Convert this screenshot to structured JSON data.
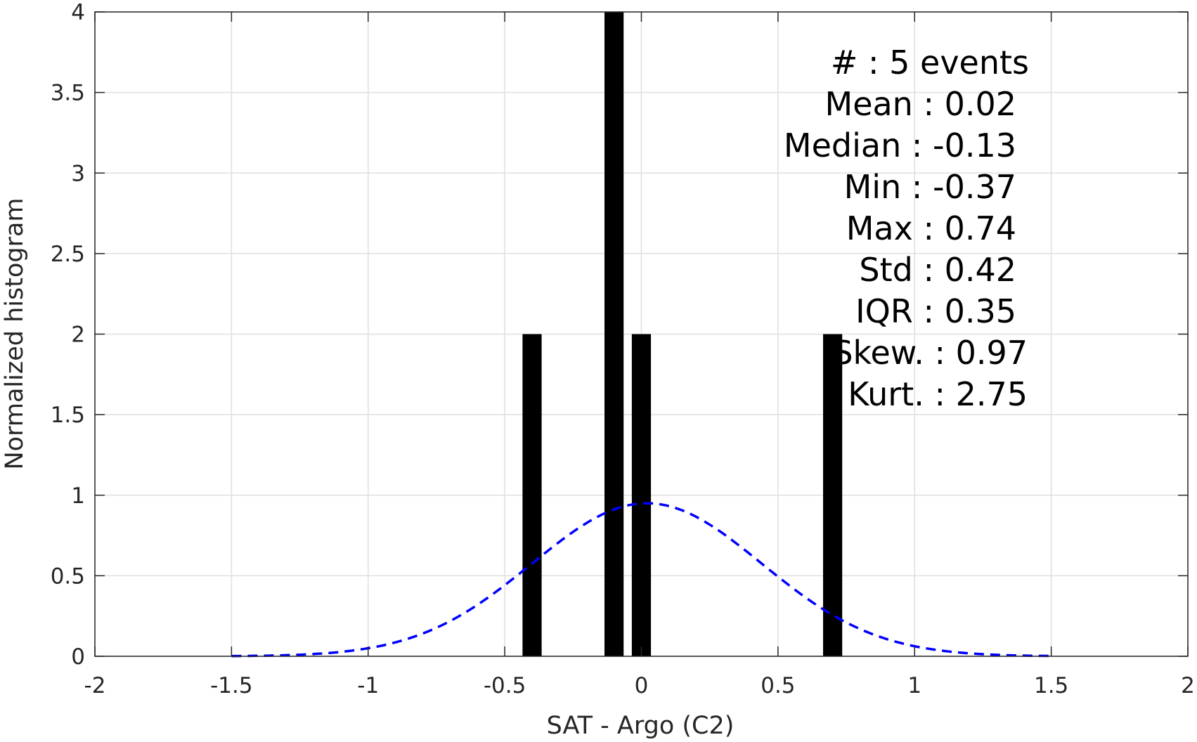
{
  "chart_data": {
    "type": "bar",
    "xlabel": "SAT - Argo (C2)",
    "ylabel": "Normalized histogram",
    "xlim": [
      -2,
      2
    ],
    "ylim": [
      0,
      4
    ],
    "x_ticks": [
      "-2",
      "-1.5",
      "-1",
      "-0.5",
      "0",
      "0.5",
      "1",
      "1.5",
      "2"
    ],
    "y_ticks": [
      "0",
      "0.5",
      "1",
      "1.5",
      "2",
      "2.5",
      "3",
      "3.5",
      "4"
    ],
    "grid": true,
    "bars": [
      {
        "x": -0.4,
        "value": 2
      },
      {
        "x": -0.1,
        "value": 4
      },
      {
        "x": 0.0,
        "value": 2
      },
      {
        "x": 0.7,
        "value": 2
      }
    ],
    "bar_color": "#000000",
    "fit_curve": {
      "type": "normal",
      "mean": 0.02,
      "std": 0.42,
      "x_range": [
        -1.5,
        1.5
      ],
      "color": "#0000ff",
      "style": "dashed"
    },
    "stats": [
      "#  : 5 events",
      "Mean : 0.02",
      "Median : -0.13",
      "Min : -0.37",
      "Max : 0.74",
      "Std : 0.42",
      "IQR : 0.35",
      "Skew. : 0.97",
      "Kurt. : 2.75"
    ]
  }
}
